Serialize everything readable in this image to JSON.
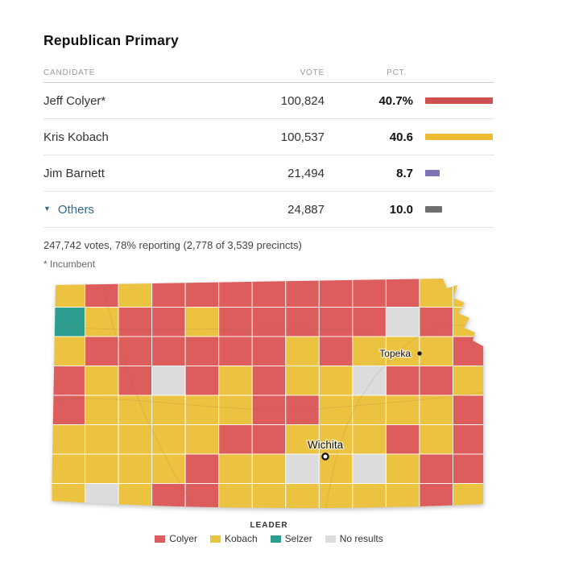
{
  "header": {
    "title": "Republican Primary"
  },
  "table": {
    "columns": {
      "candidate": "CANDIDATE",
      "vote": "VOTE",
      "pct": "PCT."
    },
    "rows": [
      {
        "candidate": "Jeff Colyer*",
        "vote": "100,824",
        "pct": "40.7",
        "pct_suffix": "%",
        "bar_pct": 40.7,
        "bar_color": "#d05050"
      },
      {
        "candidate": "Kris Kobach",
        "vote": "100,537",
        "pct": "40.6",
        "bar_pct": 40.6,
        "bar_color": "#ecba33"
      },
      {
        "candidate": "Jim Barnett",
        "vote": "21,494",
        "pct": "8.7",
        "bar_pct": 8.7,
        "bar_color": "#7d74b8"
      },
      {
        "candidate": "Others",
        "vote": "24,887",
        "pct": "10.0",
        "bar_pct": 10.0,
        "bar_color": "#6e6e6e",
        "expand_icon": "▼"
      }
    ],
    "summary": "247,742 votes, 78% reporting (2,778 of 3,539 precincts)",
    "footnote": "* Incumbent"
  },
  "map": {
    "color_key": {
      "R": "#dd5c5c",
      "Y": "#ecc341",
      "T": "#2d9d90",
      "G": "#dcdcdc"
    },
    "rows": [
      "YRYRRRRRRRRYY",
      "TYRRYRRRRRGRY",
      "YRRRRRRYRYYYR",
      "RYRGRYRYYGRRY",
      "RYYYYYRRYYYYR",
      "YYYYYRRYYYRYR",
      "YYYYRYYGYGYRR",
      "YGYRRYYYYYYRY"
    ],
    "cities": [
      {
        "name": "Topeka"
      },
      {
        "name": "Wichita"
      }
    ],
    "legend": {
      "title": "LEADER",
      "items": [
        {
          "label": "Colyer",
          "color": "#dd5c5c"
        },
        {
          "label": "Kobach",
          "color": "#ecc341"
        },
        {
          "label": "Selzer",
          "color": "#2d9d90"
        },
        {
          "label": "No results",
          "color": "#dcdcdc"
        }
      ]
    }
  },
  "chart_data": {
    "type": "table",
    "title": "Republican Primary",
    "columns": [
      "CANDIDATE",
      "VOTE",
      "PCT."
    ],
    "rows": [
      [
        "Jeff Colyer*",
        100824,
        40.7
      ],
      [
        "Kris Kobach",
        100537,
        40.6
      ],
      [
        "Jim Barnett",
        21494,
        8.7
      ],
      [
        "Others",
        24887,
        10.0
      ]
    ],
    "total_votes": 247742,
    "reporting_percent": 78,
    "precincts_reporting": 2778,
    "precincts_total": 3539,
    "map": {
      "type": "choropleth",
      "legend_title": "LEADER",
      "categories": [
        "Colyer",
        "Kobach",
        "Selzer",
        "No results"
      ],
      "category_colors": [
        "#dd5c5c",
        "#ecc341",
        "#2d9d90",
        "#dcdcdc"
      ],
      "labeled_cities": [
        "Topeka",
        "Wichita"
      ]
    }
  }
}
